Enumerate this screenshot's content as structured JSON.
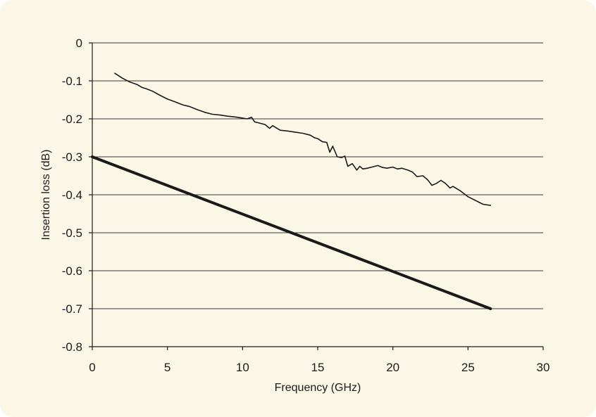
{
  "chart_data": {
    "type": "line",
    "xlabel": "Frequency (GHz)",
    "ylabel": "Insertion loss (dB)",
    "xlim": [
      0,
      30
    ],
    "ylim": [
      -0.8,
      0
    ],
    "x_ticks": [
      0,
      5,
      10,
      15,
      20,
      25,
      30
    ],
    "y_ticks": [
      0,
      -0.1,
      -0.2,
      -0.3,
      -0.4,
      -0.5,
      -0.6,
      -0.7,
      -0.8
    ],
    "x_tick_labels": [
      "0",
      "5",
      "10",
      "15",
      "20",
      "25",
      "30"
    ],
    "y_tick_labels": [
      "0",
      "-0.1",
      "-0.2",
      "-0.3",
      "-0.4",
      "-0.5",
      "-0.6",
      "-0.7",
      "-0.8"
    ],
    "grid": "horizontal",
    "legend": "none",
    "series": [
      {
        "style": "thin",
        "color": "#1a1a1a",
        "x": [
          1.5,
          2.0,
          2.5,
          3.0,
          3.3,
          3.6,
          4.0,
          4.5,
          5.0,
          5.5,
          6.0,
          6.5,
          7.0,
          7.5,
          8.0,
          8.5,
          9.0,
          9.5,
          10.0,
          10.3,
          10.6,
          10.8,
          11.0,
          11.5,
          11.8,
          12.0,
          12.5,
          13.0,
          13.5,
          14.0,
          14.5,
          14.8,
          15.0,
          15.3,
          15.6,
          15.8,
          16.0,
          16.3,
          16.6,
          16.8,
          17.0,
          17.3,
          17.6,
          17.8,
          18.0,
          18.3,
          18.6,
          19.0,
          19.3,
          19.6,
          20.0,
          20.3,
          20.6,
          21.0,
          21.3,
          21.6,
          22.0,
          22.3,
          22.6,
          22.9,
          23.2,
          23.5,
          23.8,
          24.0,
          24.5,
          25.0,
          25.5,
          26.0,
          26.5
        ],
        "y": [
          -0.08,
          -0.093,
          -0.103,
          -0.11,
          -0.117,
          -0.121,
          -0.127,
          -0.138,
          -0.148,
          -0.155,
          -0.163,
          -0.168,
          -0.176,
          -0.183,
          -0.188,
          -0.19,
          -0.193,
          -0.195,
          -0.198,
          -0.2,
          -0.196,
          -0.208,
          -0.21,
          -0.215,
          -0.225,
          -0.218,
          -0.23,
          -0.232,
          -0.235,
          -0.238,
          -0.243,
          -0.25,
          -0.252,
          -0.26,
          -0.262,
          -0.288,
          -0.272,
          -0.3,
          -0.302,
          -0.298,
          -0.325,
          -0.318,
          -0.335,
          -0.325,
          -0.332,
          -0.33,
          -0.327,
          -0.323,
          -0.328,
          -0.33,
          -0.327,
          -0.332,
          -0.33,
          -0.335,
          -0.34,
          -0.352,
          -0.35,
          -0.36,
          -0.375,
          -0.37,
          -0.362,
          -0.37,
          -0.382,
          -0.378,
          -0.39,
          -0.405,
          -0.415,
          -0.425,
          -0.428
        ]
      },
      {
        "style": "thick",
        "color": "#1a1a1a",
        "x": [
          0,
          26.5
        ],
        "y": [
          -0.3,
          -0.7
        ]
      }
    ]
  }
}
